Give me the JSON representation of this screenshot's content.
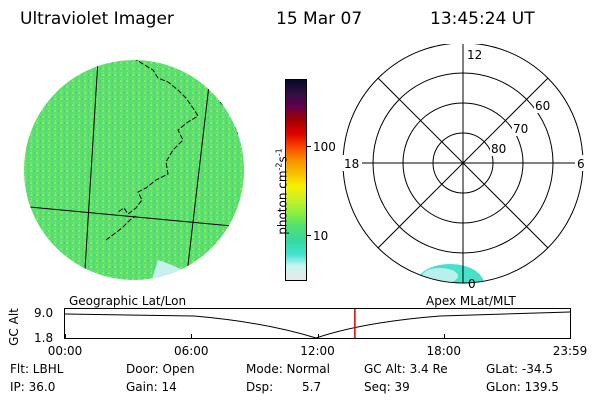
{
  "header": {
    "instrument": "Ultraviolet Imager",
    "date": "15 Mar 07",
    "time": "13:45:24 UT"
  },
  "colorbar": {
    "unit": "photon cm",
    "unit_exp": "-2",
    "unit_s": "s",
    "unit_s_exp": "-1",
    "tick_100": "100",
    "tick_10": "10",
    "colors": [
      "#e8e8e8",
      "#c8f4f0",
      "#40e0d0",
      "#38d8a0",
      "#50e070",
      "#88f040",
      "#c8f028",
      "#f8f000",
      "#f8c000",
      "#f89000",
      "#f84000",
      "#e00000",
      "#a00000",
      "#600050",
      "#301040",
      "#080828"
    ]
  },
  "polar_plot": {
    "labels_hour": {
      "top": "12",
      "left": "18",
      "right": "6",
      "bottom": "0"
    },
    "labels_lat": [
      "60",
      "70",
      "80"
    ]
  },
  "labels": {
    "geographic": "Geographic Lat/Lon",
    "apex": "Apex MLat/MLT"
  },
  "altitude_plot": {
    "ylabel": "GC Alt",
    "y_top": "9.0",
    "y_bottom": "1.8",
    "x_ticks": [
      "00:00",
      "06:00",
      "12:00",
      "18:00",
      "23:59"
    ],
    "current_time_fraction": 0.574,
    "marker_color": "#dd0000"
  },
  "info": {
    "filter": "Flt: LBHL",
    "ip": "IP: 36.0",
    "door": "Door: Open",
    "gain": "Gain: 14",
    "mode": "Mode: Normal",
    "dsp": "Dsp:",
    "dsp_value": "5.7",
    "gc_alt": "GC Alt: 3.4 Re",
    "seq": "Seq: 39",
    "glat": "GLat: -34.5",
    "glon": "GLon: 139.5"
  }
}
